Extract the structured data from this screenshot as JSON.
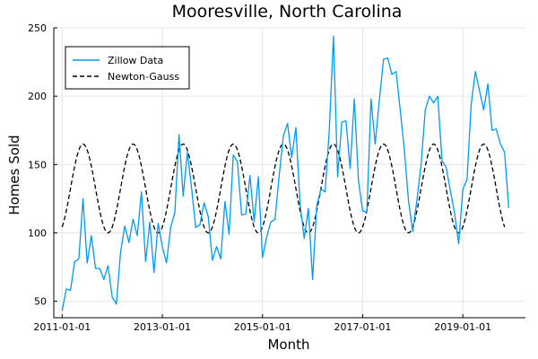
{
  "chart_data": {
    "type": "line",
    "title": "Mooresville, North Carolina",
    "xlabel": "Month",
    "ylabel": "Homes Sold",
    "x_start": "2011-01-01",
    "x_end": "2019-11-01",
    "xlim": [
      "2010-11-01",
      "2020-04-01"
    ],
    "ylim": [
      38,
      250
    ],
    "x_ticks": [
      "2011-01-01",
      "2013-01-01",
      "2015-01-01",
      "2017-01-01",
      "2019-01-01"
    ],
    "y_ticks": [
      50,
      100,
      150,
      200,
      250
    ],
    "grid": true,
    "legend_position": "top-left",
    "series": [
      {
        "name": "Zillow Data",
        "color": "#009AFA",
        "style": "solid",
        "values": [
          43,
          59,
          58,
          79,
          81,
          125,
          78,
          98,
          74,
          74,
          66,
          76,
          53,
          48,
          86,
          105,
          93,
          110,
          98,
          130,
          79,
          108,
          71,
          107,
          90,
          78,
          104,
          115,
          172,
          127,
          159,
          133,
          104,
          106,
          122,
          112,
          80,
          90,
          81,
          123,
          99,
          157,
          152,
          113,
          114,
          142,
          108,
          141,
          82,
          97,
          108,
          110,
          142,
          171,
          180,
          155,
          177,
          121,
          96,
          118,
          66,
          120,
          132,
          130,
          175,
          244,
          141,
          181,
          182,
          147,
          198,
          138,
          116,
          115,
          198,
          165,
          197,
          227,
          228,
          216,
          218,
          190,
          160,
          123,
          101,
          124,
          150,
          190,
          200,
          195,
          200,
          153,
          148,
          131,
          115,
          92,
          132,
          139,
          194,
          218,
          204,
          190,
          209,
          175,
          176,
          165,
          159,
          118
        ]
      },
      {
        "name": "Newton-Gauss",
        "color": "#000000",
        "style": "dashed",
        "model": "132.5 + 32.5*cos(2*pi*(m-5)/12)"
      }
    ]
  }
}
